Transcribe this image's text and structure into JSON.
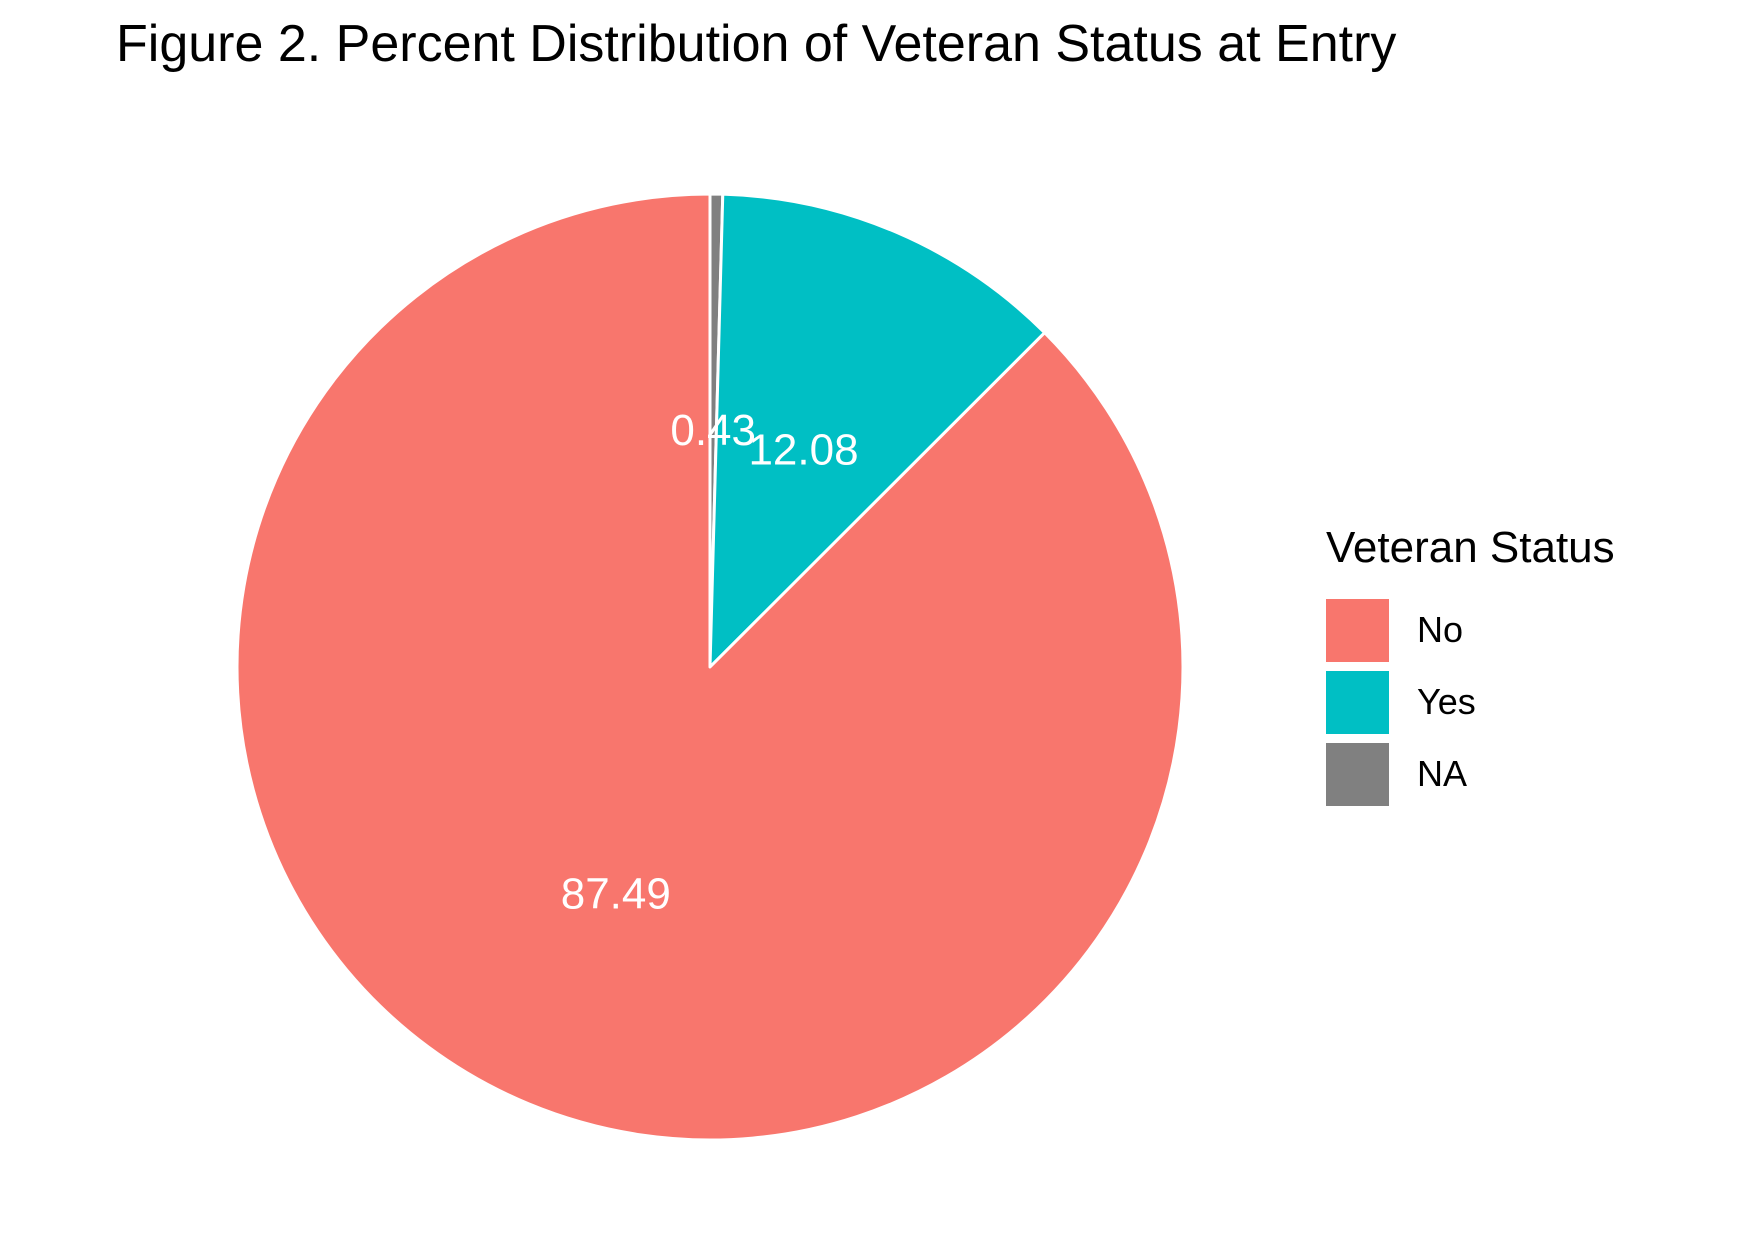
{
  "chart_data": {
    "type": "pie",
    "title": "Figure 2. Percent Distribution of Veteran Status at Entry",
    "legend_title": "Veteran Status",
    "legend_position": "right",
    "categories": [
      "No",
      "Yes",
      "NA"
    ],
    "values": [
      87.49,
      12.08,
      0.43
    ],
    "data_labels": [
      "87.49",
      "12.08",
      "0.43"
    ],
    "colors": [
      "#F8766D",
      "#00BFC4",
      "#808080"
    ],
    "slice_border_color": "#FFFFFF"
  }
}
